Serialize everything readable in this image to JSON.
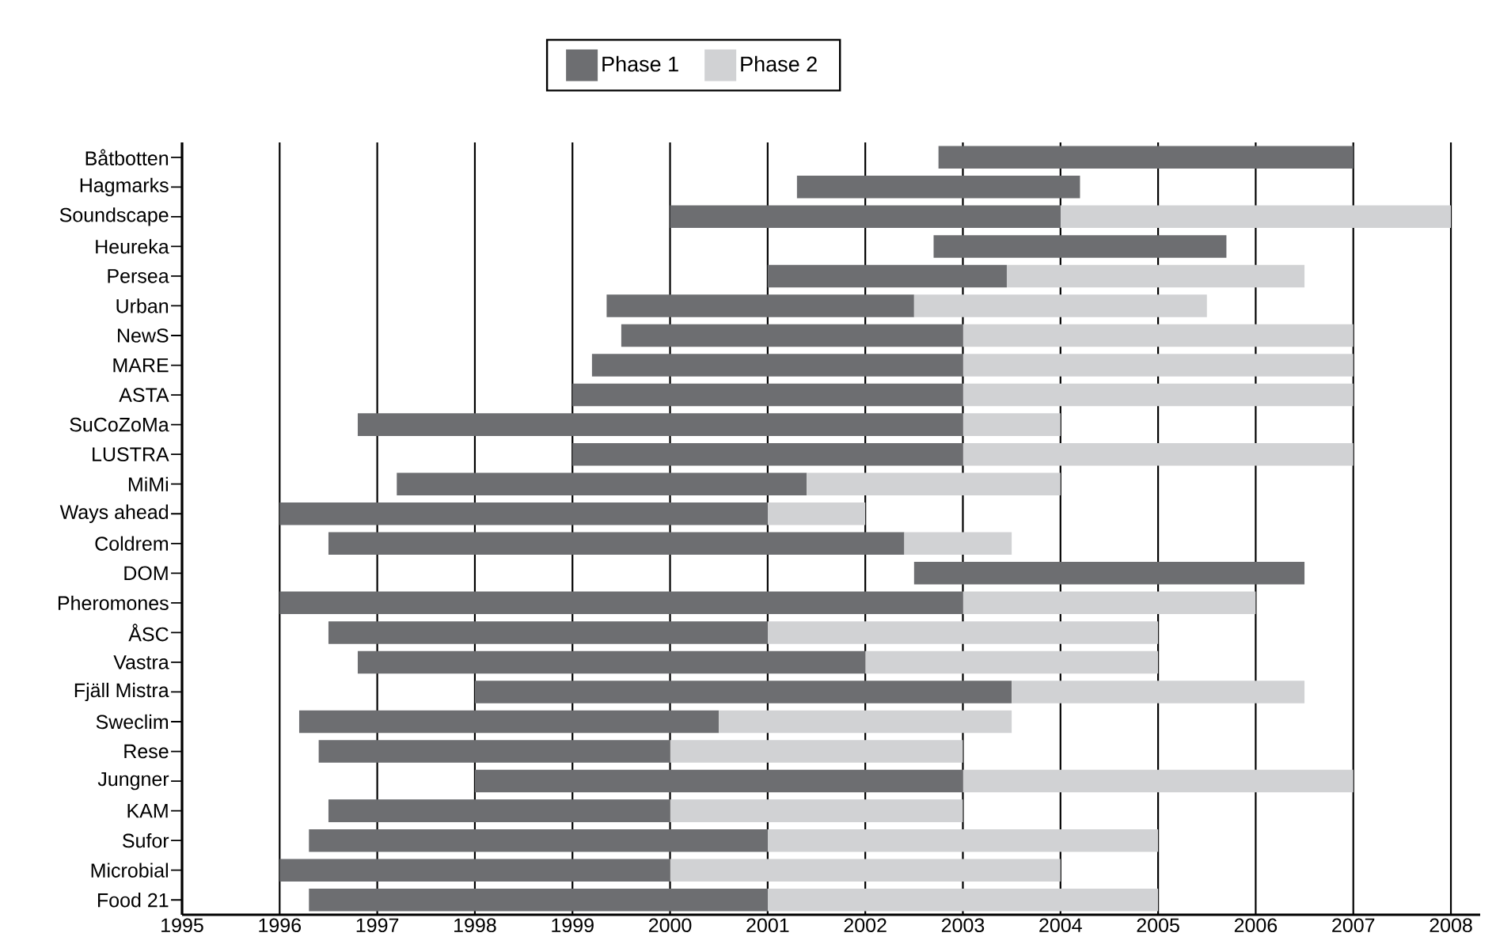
{
  "chart_data": {
    "type": "bar",
    "orientation": "horizontal",
    "categories": [
      "Båtbotten",
      "Hagmarks",
      "Soundscape",
      "Heureka",
      "Persea",
      "Urban",
      "NewS",
      "MARE",
      "ASTA",
      "SuCoZoMa",
      "LUSTRA",
      "MiMi",
      "Ways ahead",
      "Coldrem",
      "DOM",
      "Pheromones",
      "ÅSC",
      "Vastra",
      "Fjäll Mistra",
      "Sweclim",
      "Rese",
      "Jungner",
      "KAM",
      "Sufor",
      "Microbial",
      "Food 21"
    ],
    "series": [
      {
        "name": "Phase 1",
        "color": "#6d6e71",
        "base": [
          2002.75,
          2001.3,
          2000,
          2002.7,
          2001,
          1999.35,
          1999.5,
          1999.2,
          1999,
          1996.8,
          1999,
          1997.2,
          1996,
          1996.5,
          2002.5,
          1996,
          1996.5,
          1996.8,
          1998,
          1996.2,
          1996.4,
          1998,
          1996.5,
          1996.3,
          1996,
          1996.3
        ],
        "values": [
          4.25,
          2.9,
          4,
          3,
          2.45,
          3.15,
          3.5,
          3.8,
          4,
          6.2,
          4,
          4.2,
          5,
          5.9,
          4,
          7,
          4.5,
          5.2,
          5.5,
          4.3,
          3.6,
          5,
          3.5,
          4.7,
          4,
          4.7
        ]
      },
      {
        "name": "Phase 2",
        "color": "#d1d2d4",
        "base": [
          null,
          null,
          2004,
          null,
          2003.45,
          2002.5,
          2003,
          2003,
          2003,
          2003,
          2003,
          2001.4,
          2001,
          2002.4,
          null,
          2003,
          2001,
          2002,
          2003.5,
          2000.5,
          2000,
          2003,
          2000,
          2001,
          2000,
          2001
        ],
        "values": [
          null,
          null,
          4,
          null,
          3.05,
          3,
          4,
          4,
          4,
          1,
          4,
          2.6,
          1,
          1.1,
          null,
          3,
          4,
          3,
          3,
          3,
          3,
          4,
          3,
          4,
          4,
          4
        ]
      }
    ],
    "xlim": [
      1995,
      2008.3
    ],
    "xticks": [
      1995,
      1996,
      1997,
      1998,
      1999,
      2000,
      2001,
      2002,
      2003,
      2004,
      2005,
      2006,
      2007,
      2008
    ],
    "grid": "x",
    "legend": "top"
  }
}
